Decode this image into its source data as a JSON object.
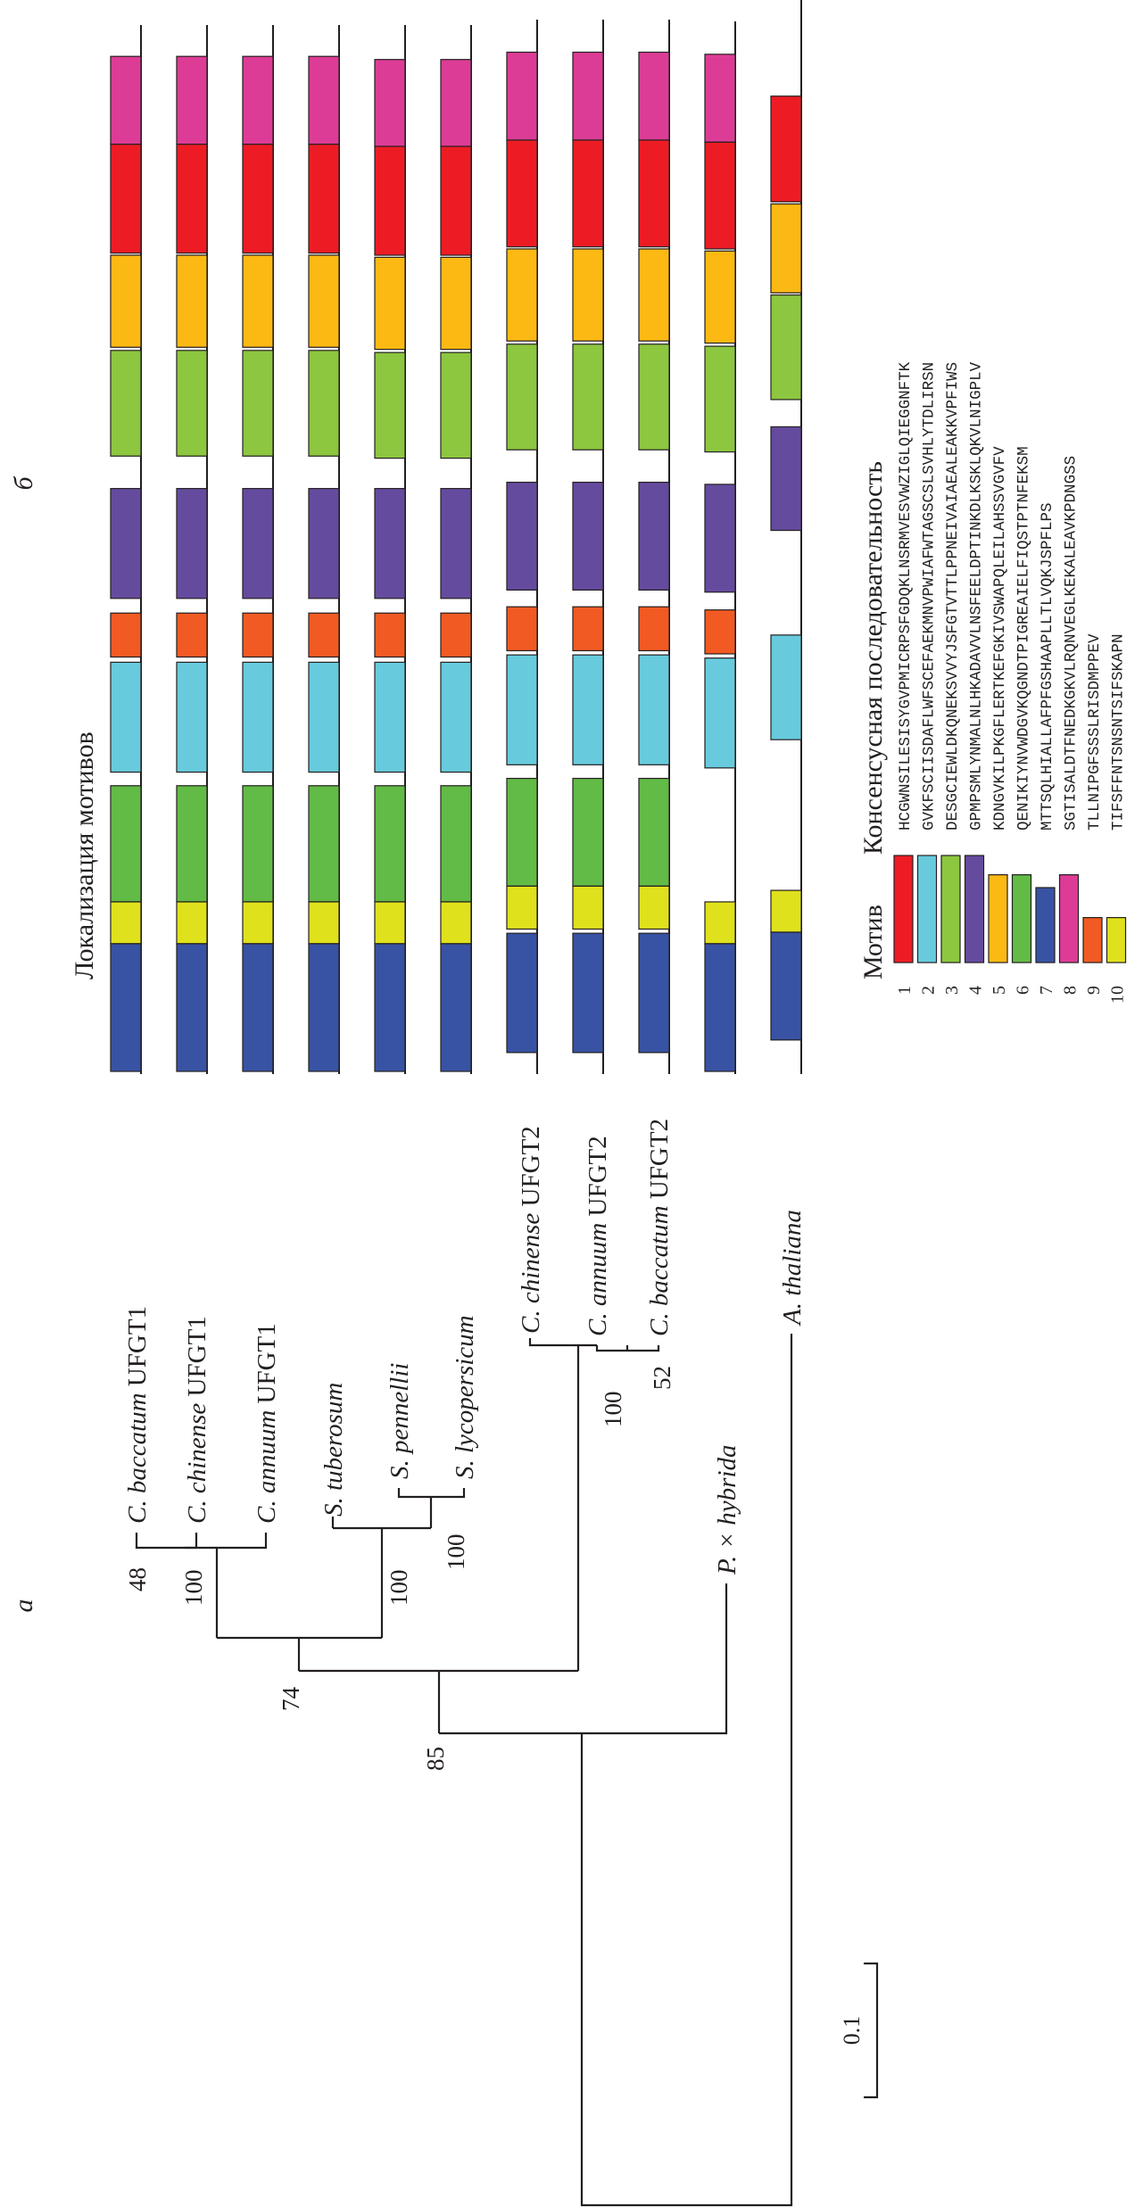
{
  "panel_labels": {
    "a": "а",
    "b": "б"
  },
  "motif_panel_title": "Локализация мотивов",
  "legend": {
    "col_motif": "Мотив",
    "col_sequence": "Консенсусная последовательность",
    "motifs": [
      {
        "id": "1",
        "color": "#ed1c24",
        "sequence": "HCGWNSILESISYGVPMICRPSFGDQKLNSRMVESVWZIGLQIEGGNFTK",
        "length": 50
      },
      {
        "id": "2",
        "color": "#67cbdd",
        "sequence": "GVKFSCIISDAFLWFSCEFAEKMNVPWIAFWTAGSCSLSVHLYTDLIRSN",
        "length": 50
      },
      {
        "id": "3",
        "color": "#8dc63f",
        "sequence": "DESGCIEWLDKQNEKSVVYJSFGTVTTLPPNEIVAIAEALEAKKVPFIWS",
        "length": 50
      },
      {
        "id": "4",
        "color": "#654b9e",
        "sequence": "GPMPSMLYNMALNLHKADAVVLNSFEELDPTINKDLKSKLQKVLNIGPLV",
        "length": 50
      },
      {
        "id": "5",
        "color": "#fdb913",
        "sequence": "KDNGVKILPKGFLERTKEFGKIVSWAPQLEILAHSSVGVFV",
        "length": 41
      },
      {
        "id": "6",
        "color": "#62bb46",
        "sequence": "QENIKIYNVWDGVKQGNDTPIGREAIELFIQSTPTNFEKSM",
        "length": 41
      },
      {
        "id": "7",
        "color": "#3853a4",
        "sequence": "MTTSQLHIALLAFPFGSHAAPLLTLVQKJSPFLPS",
        "length": 35
      },
      {
        "id": "8",
        "color": "#dd3c96",
        "sequence": "SGTISALDTFNEDKGKVLRQNVEGLKEKALEAVKPDNGSS",
        "length": 41
      },
      {
        "id": "9",
        "color": "#f15a22",
        "sequence": "TLLNIPGFSSSLRISDMPPEV",
        "length": 21
      },
      {
        "id": "10",
        "color": "#dfe11d",
        "sequence": "TIFSFFNTSNSNTSIFSKAPN",
        "length": 21
      }
    ]
  },
  "tree": {
    "scale_bar_label": "0.1",
    "taxa": [
      {
        "genus": "C.",
        "species": "baccatum",
        "suffix": "UFGT1"
      },
      {
        "genus": "C.",
        "species": "chinense",
        "suffix": "UFGT1"
      },
      {
        "genus": "C.",
        "species": "annuum",
        "suffix": "UFGT1"
      },
      {
        "genus": "S.",
        "species": "tuberosum",
        "suffix": ""
      },
      {
        "genus": "S.",
        "species": "pennellii",
        "suffix": ""
      },
      {
        "genus": "S.",
        "species": "lycopersicum",
        "suffix": ""
      },
      {
        "genus": "C.",
        "species": "chinense",
        "suffix": "UFGT2"
      },
      {
        "genus": "C.",
        "species": "annuum",
        "suffix": "UFGT2"
      },
      {
        "genus": "C.",
        "species": "baccatum",
        "suffix": "UFGT2"
      },
      {
        "genus": "P.",
        "species": "× hybrida",
        "suffix": ""
      },
      {
        "genus": "A.",
        "species": "thaliana",
        "suffix": ""
      }
    ],
    "bootstrap": [
      {
        "node": "C.baccatum+C.chinense UFGT1",
        "value": "48"
      },
      {
        "node": "Capsicum UFGT1",
        "value": "100"
      },
      {
        "node": "S.pennellii+S.lycopersicum",
        "value": "100"
      },
      {
        "node": "Solanum",
        "value": "100"
      },
      {
        "node": "UFGT1 Capsicum+Solanum",
        "value": "74"
      },
      {
        "node": "C.annuum+C.baccatum UFGT2",
        "value": "52"
      },
      {
        "node": "Capsicum UFGT2",
        "value": "100"
      },
      {
        "node": "Solanaceae UFGT",
        "value": "85"
      }
    ]
  },
  "motif_tracks": [
    {
      "taxon_index": 0,
      "motifs": [
        [
          8,
          0.03,
          0.114
        ],
        [
          1,
          0.114,
          0.218
        ],
        [
          5,
          0.22,
          0.308
        ],
        [
          3,
          0.311,
          0.412
        ],
        [
          4,
          0.443,
          0.548
        ],
        [
          9,
          0.562,
          0.604
        ],
        [
          2,
          0.609,
          0.714
        ],
        [
          6,
          0.727,
          0.838
        ],
        [
          10,
          0.838,
          0.878
        ],
        [
          7,
          0.878,
          1.0
        ]
      ]
    },
    {
      "taxon_index": 1,
      "motifs": [
        [
          8,
          0.03,
          0.114
        ],
        [
          1,
          0.114,
          0.218
        ],
        [
          5,
          0.22,
          0.308
        ],
        [
          3,
          0.311,
          0.412
        ],
        [
          4,
          0.443,
          0.548
        ],
        [
          9,
          0.562,
          0.604
        ],
        [
          2,
          0.609,
          0.714
        ],
        [
          6,
          0.727,
          0.838
        ],
        [
          10,
          0.838,
          0.878
        ],
        [
          7,
          0.878,
          1.0
        ]
      ]
    },
    {
      "taxon_index": 2,
      "motifs": [
        [
          8,
          0.03,
          0.114
        ],
        [
          1,
          0.114,
          0.218
        ],
        [
          5,
          0.22,
          0.308
        ],
        [
          3,
          0.311,
          0.412
        ],
        [
          4,
          0.443,
          0.548
        ],
        [
          9,
          0.562,
          0.604
        ],
        [
          2,
          0.609,
          0.714
        ],
        [
          6,
          0.727,
          0.838
        ],
        [
          10,
          0.838,
          0.878
        ],
        [
          7,
          0.878,
          1.0
        ]
      ]
    },
    {
      "taxon_index": 3,
      "motifs": [
        [
          8,
          0.03,
          0.114
        ],
        [
          1,
          0.114,
          0.218
        ],
        [
          5,
          0.22,
          0.308
        ],
        [
          3,
          0.311,
          0.412
        ],
        [
          4,
          0.443,
          0.548
        ],
        [
          9,
          0.562,
          0.604
        ],
        [
          2,
          0.609,
          0.714
        ],
        [
          6,
          0.727,
          0.838
        ],
        [
          10,
          0.838,
          0.878
        ],
        [
          7,
          0.878,
          1.0
        ]
      ]
    },
    {
      "taxon_index": 4,
      "motifs": [
        [
          8,
          0.033,
          0.116
        ],
        [
          1,
          0.116,
          0.22
        ],
        [
          5,
          0.222,
          0.31
        ],
        [
          3,
          0.313,
          0.414
        ],
        [
          4,
          0.443,
          0.548
        ],
        [
          9,
          0.562,
          0.604
        ],
        [
          2,
          0.609,
          0.714
        ],
        [
          6,
          0.727,
          0.838
        ],
        [
          10,
          0.838,
          0.878
        ],
        [
          7,
          0.878,
          1.0
        ]
      ]
    },
    {
      "taxon_index": 5,
      "motifs": [
        [
          8,
          0.033,
          0.116
        ],
        [
          1,
          0.116,
          0.22
        ],
        [
          5,
          0.222,
          0.31
        ],
        [
          3,
          0.313,
          0.414
        ],
        [
          4,
          0.443,
          0.548
        ],
        [
          9,
          0.562,
          0.604
        ],
        [
          2,
          0.609,
          0.714
        ],
        [
          6,
          0.727,
          0.838
        ],
        [
          10,
          0.838,
          0.878
        ],
        [
          7,
          0.878,
          1.0
        ]
      ]
    },
    {
      "taxon_index": 6,
      "motifs": [
        [
          8,
          0.026,
          0.11
        ],
        [
          1,
          0.11,
          0.212
        ],
        [
          5,
          0.214,
          0.302
        ],
        [
          3,
          0.305,
          0.406
        ],
        [
          4,
          0.437,
          0.54
        ],
        [
          9,
          0.556,
          0.598
        ],
        [
          2,
          0.602,
          0.707
        ],
        [
          6,
          0.72,
          0.823
        ],
        [
          10,
          0.823,
          0.864
        ],
        [
          7,
          0.868,
          0.982
        ]
      ]
    },
    {
      "taxon_index": 7,
      "motifs": [
        [
          8,
          0.026,
          0.11
        ],
        [
          1,
          0.11,
          0.212
        ],
        [
          5,
          0.214,
          0.302
        ],
        [
          3,
          0.305,
          0.406
        ],
        [
          4,
          0.437,
          0.54
        ],
        [
          9,
          0.556,
          0.598
        ],
        [
          2,
          0.602,
          0.707
        ],
        [
          6,
          0.72,
          0.823
        ],
        [
          10,
          0.823,
          0.864
        ],
        [
          7,
          0.868,
          0.982
        ]
      ]
    },
    {
      "taxon_index": 8,
      "motifs": [
        [
          8,
          0.026,
          0.11
        ],
        [
          1,
          0.11,
          0.212
        ],
        [
          5,
          0.214,
          0.302
        ],
        [
          3,
          0.305,
          0.406
        ],
        [
          4,
          0.437,
          0.54
        ],
        [
          9,
          0.556,
          0.598
        ],
        [
          2,
          0.602,
          0.707
        ],
        [
          6,
          0.72,
          0.823
        ],
        [
          10,
          0.823,
          0.864
        ],
        [
          7,
          0.868,
          0.982
        ]
      ]
    },
    {
      "taxon_index": 9,
      "motifs": [
        [
          8,
          0.028,
          0.112
        ],
        [
          1,
          0.112,
          0.214
        ],
        [
          5,
          0.216,
          0.304
        ],
        [
          3,
          0.307,
          0.408
        ],
        [
          4,
          0.439,
          0.542
        ],
        [
          9,
          0.559,
          0.601
        ],
        [
          2,
          0.605,
          0.71
        ],
        [
          10,
          0.838,
          0.878
        ],
        [
          7,
          0.878,
          1.0
        ]
      ]
    },
    {
      "taxon_index": 10,
      "motifs": [
        [
          1,
          0.068,
          0.169
        ],
        [
          5,
          0.171,
          0.256
        ],
        [
          3,
          0.258,
          0.358
        ],
        [
          4,
          0.384,
          0.483
        ],
        [
          2,
          0.583,
          0.683
        ],
        [
          10,
          0.827,
          0.867
        ],
        [
          7,
          0.867,
          0.97
        ]
      ]
    }
  ]
}
